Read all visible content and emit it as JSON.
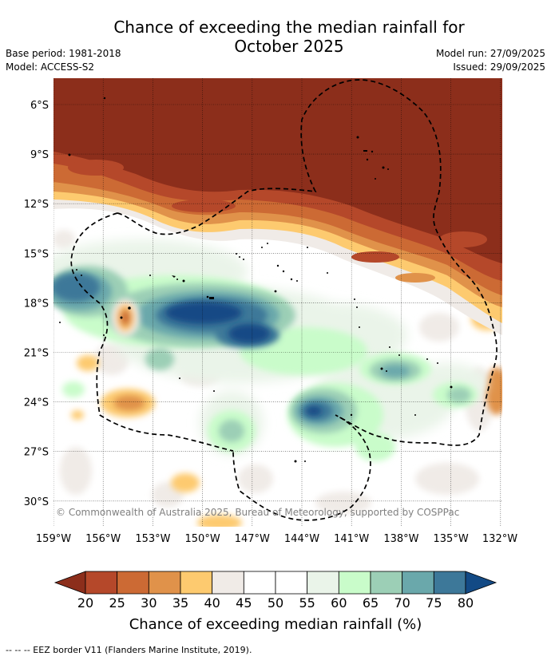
{
  "header": {
    "title_line1": "Chance of exceeding the median rainfall for",
    "title_line2": "October 2025",
    "base_period": "Base period: 1981-2018",
    "model": "Model: ACCESS-S2",
    "model_run": "Model run: 27/09/2025",
    "issued": "Issued: 29/09/2025"
  },
  "map": {
    "latitude_labels": [
      "6°S",
      "9°S",
      "12°S",
      "15°S",
      "18°S",
      "21°S",
      "24°S",
      "27°S",
      "30°S"
    ],
    "longitude_labels": [
      "159°W",
      "156°W",
      "153°W",
      "150°W",
      "147°W",
      "144°W",
      "141°W",
      "138°W",
      "135°W",
      "132°W"
    ],
    "copyright": "© Commonwealth of Australia 2025, Bureau of Meteorology, supported by COSPPac",
    "land_color": "#000000",
    "eez_border_color": "#000000"
  },
  "colorbar": {
    "ticks": [
      "20",
      "25",
      "30",
      "35",
      "40",
      "45",
      "50",
      "55",
      "60",
      "65",
      "70",
      "75",
      "80"
    ],
    "colors": [
      "#8c2e1b",
      "#b5482a",
      "#cc6a34",
      "#e0924a",
      "#fdca6f",
      "#f0ebe7",
      "#ffffff",
      "#ffffff",
      "#eaf4e9",
      "#c9fcca",
      "#9ccfb6",
      "#6aa8ab",
      "#3d7899",
      "#134a85"
    ],
    "label": "Chance of exceeding median rainfall (%)"
  },
  "footer": {
    "legend_text": "--  --  -- EEZ border V11 (Flanders Marine Institute, 2019)."
  }
}
